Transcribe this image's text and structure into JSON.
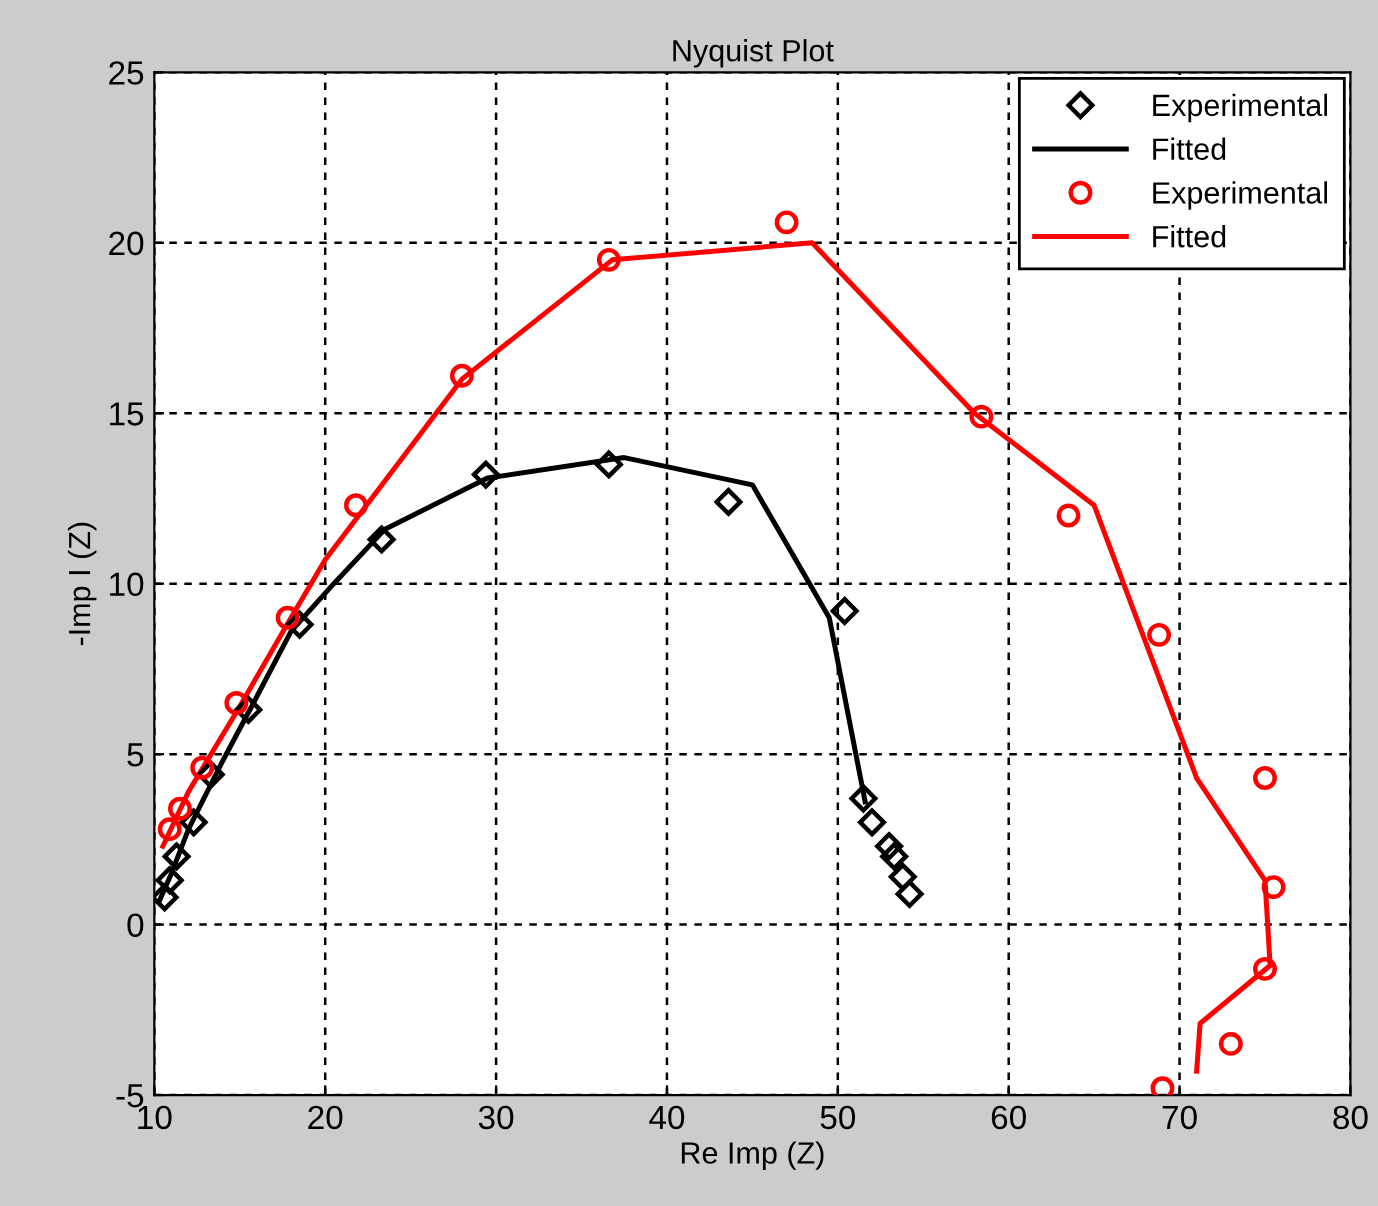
{
  "chart_data": {
    "type": "line",
    "title": "Nyquist Plot",
    "xlabel": "Re Imp (Z)",
    "ylabel": "-Imp I (Z)",
    "xlim": [
      10,
      80
    ],
    "xticks": [
      10,
      20,
      30,
      40,
      50,
      60,
      70,
      80
    ],
    "ylim": [
      -5,
      25
    ],
    "yticks": [
      -5,
      0,
      5,
      10,
      15,
      20,
      25
    ],
    "grid": true,
    "legend": "top right",
    "series": [
      {
        "name": "Experimental",
        "type": "scatter",
        "marker": "diamond",
        "color": "#000000",
        "x": [
          10.6,
          10.9,
          11.3,
          12.3,
          13.3,
          15.5,
          18.5,
          23.3,
          29.4,
          36.6,
          43.6,
          50.4,
          51.5,
          52,
          53,
          53.3,
          53.8,
          54.2
        ],
        "values": [
          0.8,
          1.3,
          2.0,
          3.0,
          4.4,
          6.3,
          8.8,
          11.3,
          13.2,
          13.5,
          12.4,
          9.2,
          3.7,
          3.0,
          2.3,
          2.0,
          1.4,
          0.9
        ]
      },
      {
        "name": "Fitted",
        "line_style": "solid",
        "color": "#000000",
        "x": [
          10.3,
          11,
          12,
          14,
          15.8,
          18,
          20.5,
          23.5,
          29.5,
          37.5,
          45,
          49.5,
          51.6
        ],
        "values": [
          0.7,
          1.5,
          2.8,
          4.8,
          6.5,
          8.6,
          10,
          11.6,
          13.1,
          13.7,
          12.9,
          9,
          3.6
        ]
      },
      {
        "name": "Experimental",
        "type": "scatter",
        "marker": "circle",
        "color": "#ff0000",
        "x": [
          10.9,
          11.5,
          12.8,
          14.8,
          17.8,
          21.8,
          28,
          36.6,
          47,
          58.4,
          63.5,
          68.8,
          75,
          75.5,
          75,
          73,
          69
        ],
        "values": [
          2.8,
          3.4,
          4.6,
          6.5,
          9.0,
          12.3,
          16.1,
          19.5,
          20.6,
          14.9,
          12.0,
          8.5,
          4.3,
          1.1,
          -1.3,
          -3.5,
          -4.8
        ]
      },
      {
        "name": "Fitted",
        "line_style": "solid",
        "color": "#ff0000",
        "x": [
          10.5,
          12,
          15,
          18,
          20,
          28,
          36.8,
          48.5,
          58,
          65,
          71,
          75,
          75.3,
          71.2,
          71
        ],
        "values": [
          2.3,
          3.9,
          6.4,
          9,
          10.7,
          16,
          19.5,
          20.0,
          15,
          12.3,
          4.3,
          1.3,
          -1.2,
          -2.9,
          -4.3
        ]
      }
    ]
  }
}
